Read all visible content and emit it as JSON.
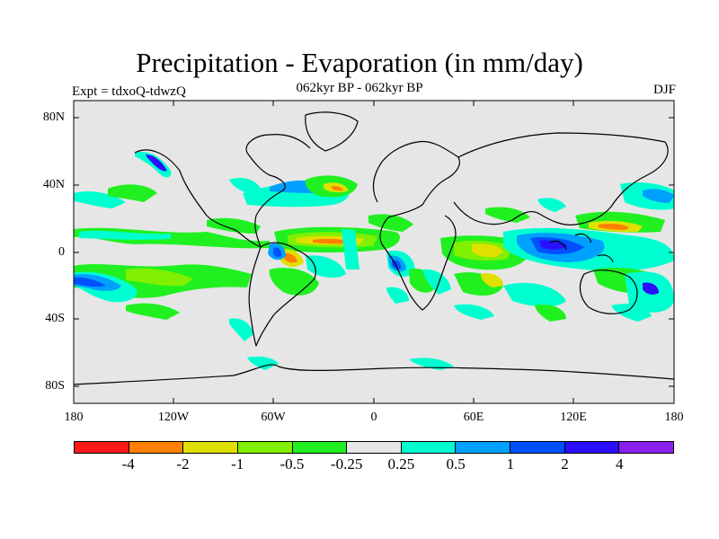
{
  "header": {
    "title": "Precipitation - Evaporation (in mm/day)",
    "subtitle": "062kyr BP - 062kyr BP",
    "left_label": "Expt = tdxoQ-tdwzQ",
    "right_label": "DJF"
  },
  "axes": {
    "lat_ticks": [
      "80N",
      "40N",
      "0",
      "40S",
      "80S"
    ],
    "lon_ticks": [
      "180",
      "120W",
      "60W",
      "0",
      "60E",
      "120E",
      "180"
    ]
  },
  "colorbar": {
    "colors": [
      "#ff1a1a",
      "#ff8000",
      "#e0e000",
      "#80f000",
      "#20f020",
      "#e6e6e6",
      "#00ffd0",
      "#00a0ff",
      "#0050ff",
      "#2a10ff",
      "#8a20f0"
    ],
    "labels": [
      "-4",
      "-2",
      "-1",
      "-0.5",
      "-0.25",
      "0.25",
      "0.5",
      "1",
      "2",
      "4"
    ]
  },
  "map": {
    "background_color": "#e6e6e6",
    "coastline_color": "#000000"
  }
}
